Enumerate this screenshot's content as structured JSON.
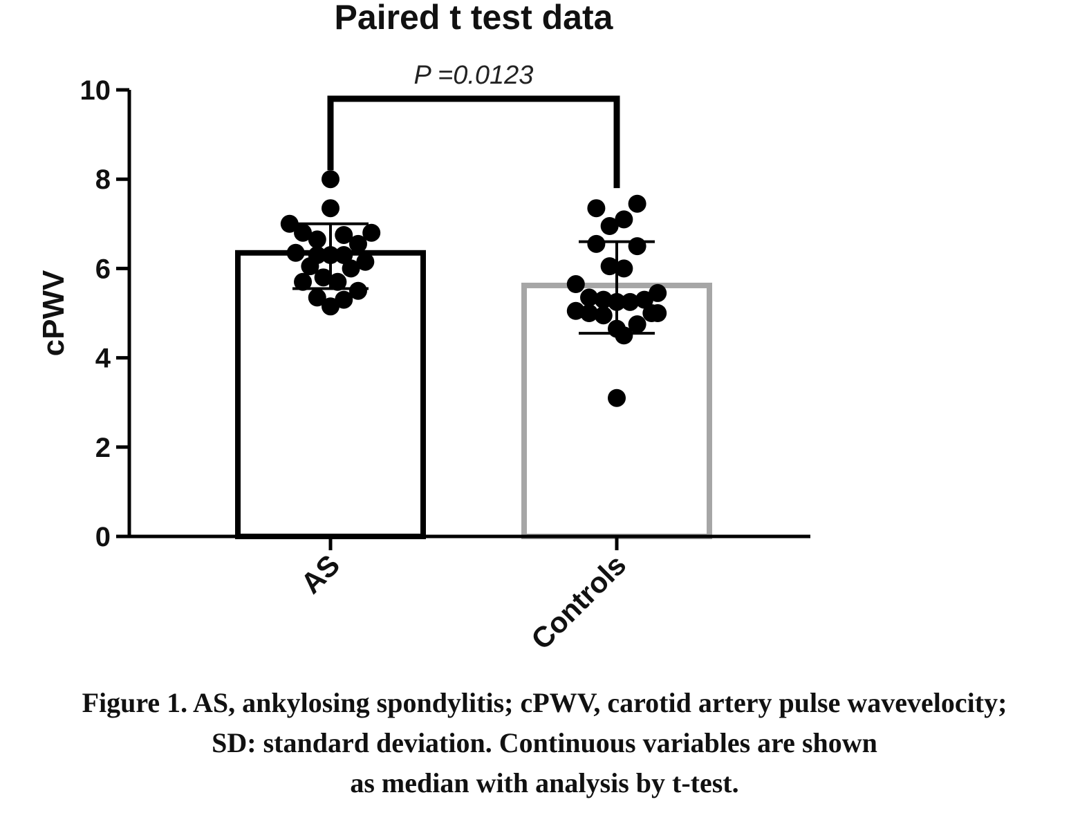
{
  "chart_data": {
    "type": "bar",
    "title": "Paired t test data",
    "xlabel": "",
    "ylabel": "cPWV",
    "ylim": [
      0,
      10
    ],
    "yticks": [
      "0",
      "2",
      "4",
      "6",
      "8",
      "10"
    ],
    "categories": [
      "AS",
      "Controls"
    ],
    "values": [
      6.35,
      5.62
    ],
    "error_bars": [
      {
        "low": 5.55,
        "high": 7.0
      },
      {
        "low": 4.55,
        "high": 6.6
      }
    ],
    "bar_colors": [
      "#000000",
      "#a6a6a6"
    ],
    "points": [
      [
        {
          "dx": -0.4,
          "y": 7.0
        },
        {
          "dx": -0.27,
          "y": 6.8
        },
        {
          "dx": 0.0,
          "y": 8.0
        },
        {
          "dx": 0.0,
          "y": 7.35
        },
        {
          "dx": 0.4,
          "y": 6.8
        },
        {
          "dx": 0.13,
          "y": 6.75
        },
        {
          "dx": -0.13,
          "y": 6.65
        },
        {
          "dx": -0.34,
          "y": 6.35
        },
        {
          "dx": -0.13,
          "y": 6.3
        },
        {
          "dx": 0.0,
          "y": 6.3
        },
        {
          "dx": 0.13,
          "y": 6.3
        },
        {
          "dx": 0.27,
          "y": 6.55
        },
        {
          "dx": 0.34,
          "y": 6.15
        },
        {
          "dx": -0.2,
          "y": 6.05
        },
        {
          "dx": 0.2,
          "y": 6.0
        },
        {
          "dx": -0.27,
          "y": 5.7
        },
        {
          "dx": -0.07,
          "y": 5.8
        },
        {
          "dx": 0.07,
          "y": 5.7
        },
        {
          "dx": 0.27,
          "y": 5.5
        },
        {
          "dx": -0.13,
          "y": 5.35
        },
        {
          "dx": 0.0,
          "y": 5.15
        },
        {
          "dx": 0.13,
          "y": 5.3
        }
      ],
      [
        {
          "dx": -0.2,
          "y": 7.35
        },
        {
          "dx": 0.07,
          "y": 7.1
        },
        {
          "dx": 0.2,
          "y": 7.45
        },
        {
          "dx": -0.07,
          "y": 6.95
        },
        {
          "dx": -0.2,
          "y": 6.55
        },
        {
          "dx": 0.2,
          "y": 6.5
        },
        {
          "dx": -0.07,
          "y": 6.05
        },
        {
          "dx": 0.07,
          "y": 6.0
        },
        {
          "dx": -0.4,
          "y": 5.65
        },
        {
          "dx": -0.27,
          "y": 5.35
        },
        {
          "dx": -0.13,
          "y": 5.3
        },
        {
          "dx": 0.0,
          "y": 5.25
        },
        {
          "dx": 0.13,
          "y": 5.25
        },
        {
          "dx": 0.27,
          "y": 5.3
        },
        {
          "dx": 0.4,
          "y": 5.45
        },
        {
          "dx": -0.4,
          "y": 5.05
        },
        {
          "dx": -0.27,
          "y": 5.0
        },
        {
          "dx": -0.13,
          "y": 4.95
        },
        {
          "dx": 0.0,
          "y": 4.65
        },
        {
          "dx": 0.07,
          "y": 4.5
        },
        {
          "dx": 0.2,
          "y": 4.75
        },
        {
          "dx": 0.34,
          "y": 5.0
        },
        {
          "dx": 0.4,
          "y": 5.0
        },
        {
          "dx": 0.0,
          "y": 3.1
        }
      ]
    ],
    "annotation": {
      "text": "P =0.0123",
      "from": 0,
      "to": 1,
      "y": 9.8,
      "left_end": 8.2,
      "right_end": 7.8
    }
  },
  "caption": {
    "line1": "Figure 1. AS, ankylosing spondylitis; cPWV, carotid artery pulse wavevelocity;",
    "line2": "SD: standard deviation. Continuous variables are shown",
    "line3": "as median with analysis by t-test."
  }
}
